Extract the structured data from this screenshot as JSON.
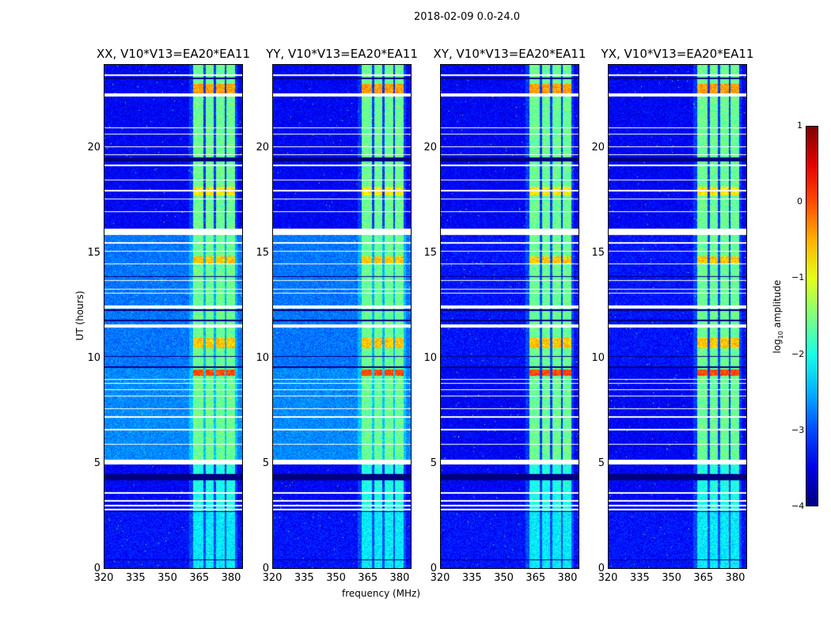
{
  "chart_data": {
    "type": "heatmap",
    "title": "2018-02-09 0.0-24.0",
    "xlabel": "frequency (MHz)",
    "ylabel": "UT (hours)",
    "xlim": [
      320,
      385.6
    ],
    "ylim": [
      0,
      24
    ],
    "xticks": [
      "320",
      "335",
      "350",
      "365",
      "380"
    ],
    "xtick_values": [
      320,
      335,
      350,
      365,
      380
    ],
    "yticks": [
      "0",
      "5",
      "10",
      "15",
      "20"
    ],
    "ytick_values": [
      0,
      5,
      10,
      15,
      20
    ],
    "colorbar": {
      "label": "log₁₀ amplitude",
      "label_prefix": "log",
      "label_sub": "10",
      "label_suffix": " amplitude",
      "colormap": "jet",
      "range": [
        -4,
        1
      ],
      "ticks": [
        "1",
        "0",
        "−1",
        "−2",
        "−3",
        "−4"
      ],
      "tick_values": [
        1,
        0,
        -1,
        -2,
        -3,
        -4
      ]
    },
    "panels": [
      {
        "title": "XX, V10*V13=EA20*EA11",
        "parallel_hand": true
      },
      {
        "title": "YY, V10*V13=EA20*EA11",
        "parallel_hand": true
      },
      {
        "title": "XY, V10*V13=EA20*EA11",
        "parallel_hand": false
      },
      {
        "title": "YX, V10*V13=EA20*EA11",
        "parallel_hand": false
      }
    ],
    "bright_bands_mhz": [
      [
        362,
        367
      ],
      [
        368,
        372
      ],
      [
        373,
        377
      ],
      [
        378,
        382
      ]
    ],
    "band_level": -1.6,
    "band_peaks_ut": [
      [
        9.2,
        9.5,
        0.0
      ],
      [
        10.5,
        11.0,
        -0.6
      ],
      [
        14.5,
        14.9,
        -0.6
      ],
      [
        17.8,
        18.2,
        -0.8
      ],
      [
        22.6,
        23.1,
        -0.4
      ]
    ],
    "background_segments": [
      {
        "ut": [
          0,
          2.7
        ],
        "parallel": -3.3,
        "cross": -3.3
      },
      {
        "ut": [
          2.7,
          5.0
        ],
        "parallel": -3.4,
        "cross": -3.4
      },
      {
        "ut": [
          5.2,
          9.6
        ],
        "parallel": -2.7,
        "cross": -3.4
      },
      {
        "ut": [
          9.6,
          12.5
        ],
        "parallel": -2.8,
        "cross": -3.3
      },
      {
        "ut": [
          12.5,
          16.0
        ],
        "parallel": -2.8,
        "cross": -3.3
      },
      {
        "ut": [
          16.0,
          24.0
        ],
        "parallel": -3.4,
        "cross": -3.4
      }
    ],
    "flagged_ut": [
      [
        4.98,
        5.2
      ],
      [
        15.9,
        16.2
      ],
      [
        12.4,
        12.55
      ],
      [
        11.5,
        11.65
      ],
      [
        22.5,
        22.65
      ],
      [
        2.78,
        2.85
      ],
      [
        2.98,
        3.05
      ],
      [
        3.2,
        3.26
      ],
      [
        3.58,
        3.64
      ],
      [
        5.9,
        5.95
      ],
      [
        6.6,
        6.65
      ],
      [
        7.2,
        7.25
      ],
      [
        7.6,
        7.65
      ],
      [
        8.2,
        8.25
      ],
      [
        8.5,
        8.55
      ],
      [
        8.8,
        8.85
      ],
      [
        9.0,
        9.05
      ],
      [
        13.1,
        13.15
      ],
      [
        13.3,
        13.35
      ],
      [
        13.7,
        13.75
      ],
      [
        14.5,
        14.55
      ],
      [
        15.1,
        15.15
      ],
      [
        15.5,
        15.55
      ],
      [
        17.0,
        17.05
      ],
      [
        17.6,
        17.65
      ],
      [
        18.0,
        18.05
      ],
      [
        18.5,
        18.55
      ],
      [
        19.2,
        19.25
      ],
      [
        19.7,
        19.75
      ],
      [
        20.1,
        20.15
      ],
      [
        20.7,
        20.75
      ],
      [
        21.0,
        21.05
      ],
      [
        23.5,
        23.55
      ]
    ],
    "dark_ut": [
      [
        0.4,
        0.45
      ],
      [
        2.68,
        2.72
      ],
      [
        4.2,
        4.5
      ],
      [
        9.58,
        9.63
      ],
      [
        10.1,
        10.15
      ],
      [
        11.8,
        11.85
      ],
      [
        12.3,
        12.35
      ],
      [
        13.9,
        13.95
      ],
      [
        19.4,
        19.6
      ],
      [
        23.35,
        23.4
      ]
    ]
  }
}
